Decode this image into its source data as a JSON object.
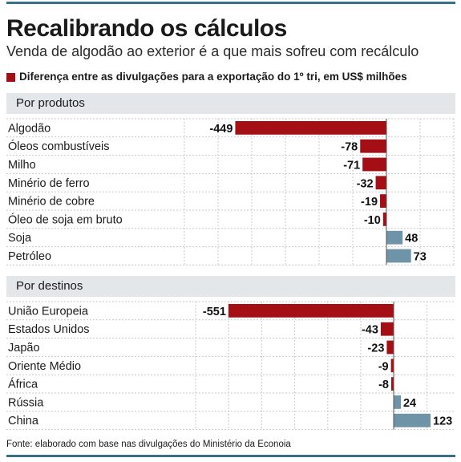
{
  "header": {
    "title": "Recalibrando os cálculos",
    "subtitle": "Venda de algodão ao exterior é a que mais sofreu com recálculo"
  },
  "legend": {
    "label": "Diferença entre as divulgações para a exportação do 1º tri, em US$ milhões",
    "color": "#a40f16"
  },
  "colors": {
    "negative": "#a40f16",
    "positive": "#6f93a7",
    "band": "#e3e7ea",
    "rule": "#3a6f8a"
  },
  "footer": {
    "source": "Fonte: elaborado com base nas divulgações do Ministério da Econoia"
  },
  "chart_data": [
    {
      "type": "bar",
      "orientation": "horizontal",
      "group_label": "Por produtos",
      "categories": [
        "Algodão",
        "Óleos combustíveis",
        "Milho",
        "Minério de ferro",
        "Minério de cobre",
        "Óleo de soja em bruto",
        "Soja",
        "Petróleo"
      ],
      "values": [
        -449,
        -78,
        -71,
        -32,
        -19,
        -10,
        48,
        73
      ],
      "value_labels": [
        "-449",
        "-78",
        "-71",
        "-32",
        "-19",
        "-10",
        "48",
        "73"
      ],
      "grid": true
    },
    {
      "type": "bar",
      "orientation": "horizontal",
      "group_label": "Por destinos",
      "categories": [
        "União Europeia",
        "Estados Unidos",
        "Japão",
        "Oriente Médio",
        "África",
        "Rússia",
        "China"
      ],
      "values": [
        -551,
        -43,
        -23,
        -9,
        -8,
        24,
        123
      ],
      "value_labels": [
        "-551",
        "-43",
        "-23",
        "-9",
        "-8",
        "24",
        "123"
      ],
      "grid": true
    }
  ]
}
